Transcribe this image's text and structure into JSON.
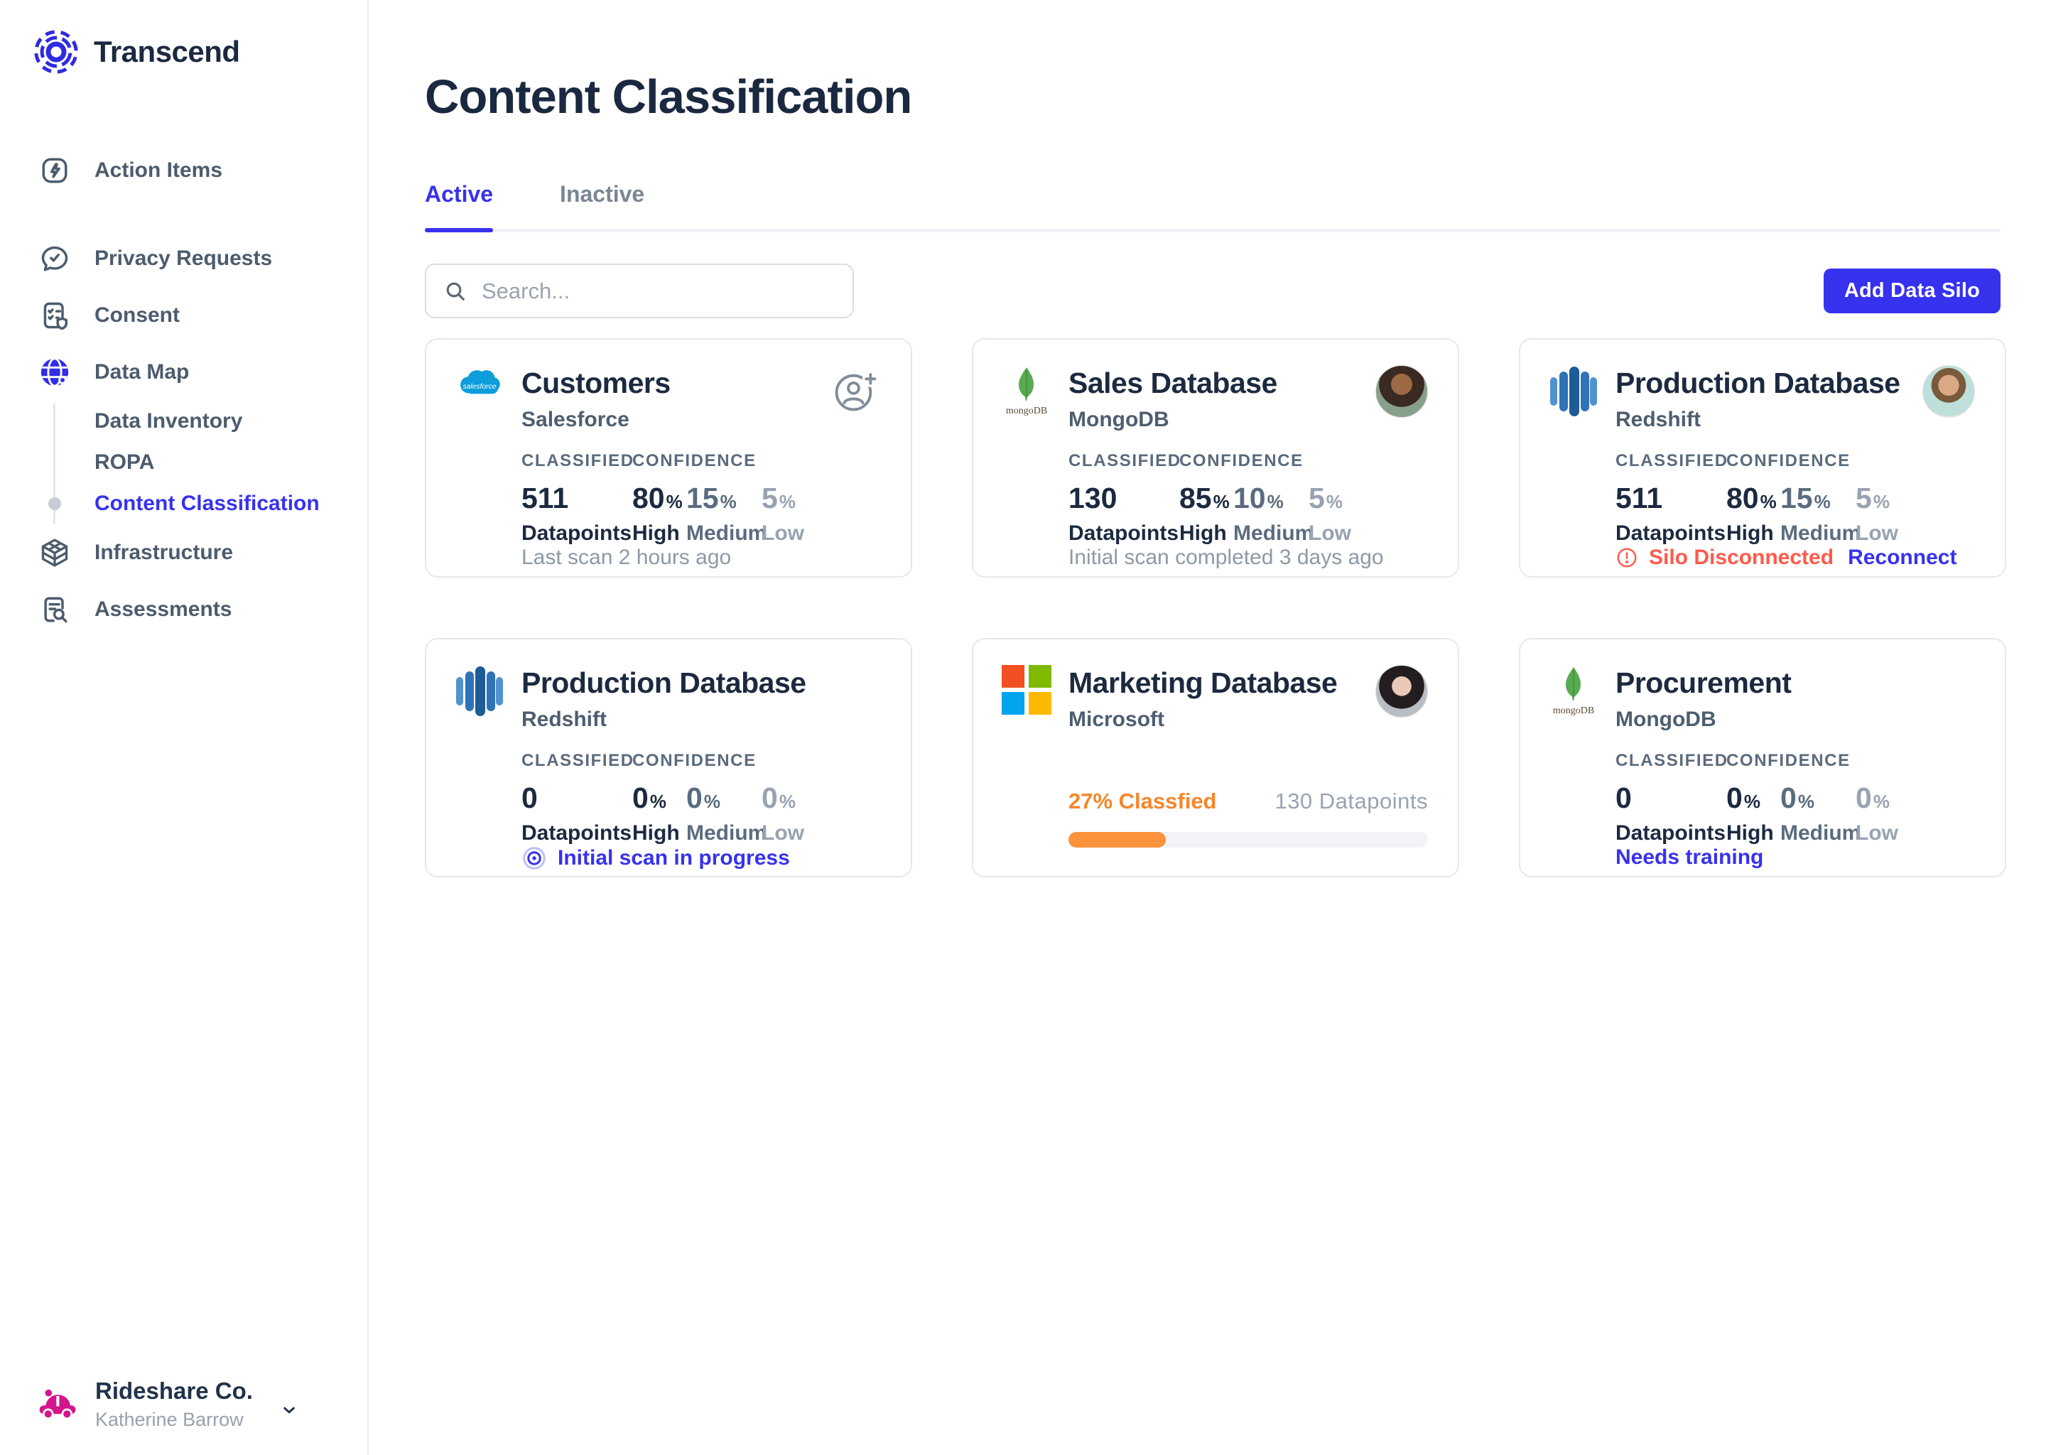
{
  "brand": {
    "name": "Transcend"
  },
  "sidebar": {
    "items": [
      {
        "label": "Action Items"
      },
      {
        "label": "Privacy Requests"
      },
      {
        "label": "Consent"
      },
      {
        "label": "Data Map"
      },
      {
        "label": "Data Inventory"
      },
      {
        "label": "ROPA"
      },
      {
        "label": "Content Classification"
      },
      {
        "label": "Infrastructure"
      },
      {
        "label": "Assessments"
      }
    ],
    "org": {
      "name": "Rideshare Co.",
      "user": "Katherine Barrow"
    }
  },
  "header": {
    "title": "Content Classification"
  },
  "tabs": [
    {
      "label": "Active"
    },
    {
      "label": "Inactive"
    }
  ],
  "toolbar": {
    "search_placeholder": "Search...",
    "add_button": "Add Data Silo"
  },
  "stat_labels": {
    "classified": "CLASSIFIED",
    "confidence": "CONFIDENCE",
    "datapoints": "Datapoints",
    "high": "High",
    "medium": "Medium",
    "low": "Low",
    "percent": "%"
  },
  "cards": [
    {
      "title": "Customers",
      "vendor": "Salesforce",
      "classified": "511",
      "high": "80",
      "medium": "15",
      "low": "5",
      "footer": "Last scan 2 hours ago"
    },
    {
      "title": "Sales Database",
      "vendor": "MongoDB",
      "classified": "130",
      "high": "85",
      "medium": "10",
      "low": "5",
      "footer": "Initial scan completed 3 days ago"
    },
    {
      "title": "Production Database",
      "vendor": "Redshift",
      "classified": "511",
      "high": "80",
      "medium": "15",
      "low": "5",
      "status": "Silo Disconnected",
      "action": "Reconnect"
    },
    {
      "title": "Production Database",
      "vendor": "Redshift",
      "classified": "0",
      "high": "0",
      "medium": "0",
      "low": "0",
      "status": "Initial scan in progress"
    },
    {
      "title": "Marketing Database",
      "vendor": "Microsoft",
      "progress_label": "27% Classfied",
      "progress_percent": 27,
      "datapoints": "130 Datapoints"
    },
    {
      "title": "Procurement",
      "vendor": "MongoDB",
      "classified": "0",
      "high": "0",
      "medium": "0",
      "low": "0",
      "action": "Needs training"
    }
  ],
  "colors": {
    "accent": "#3732EE",
    "brand_navy": "#1C2A40",
    "alert_red": "#FF594B",
    "progress_orange": "#FB923C",
    "progress_text_orange": "#F5862B",
    "org_pink": "#D5158C"
  }
}
